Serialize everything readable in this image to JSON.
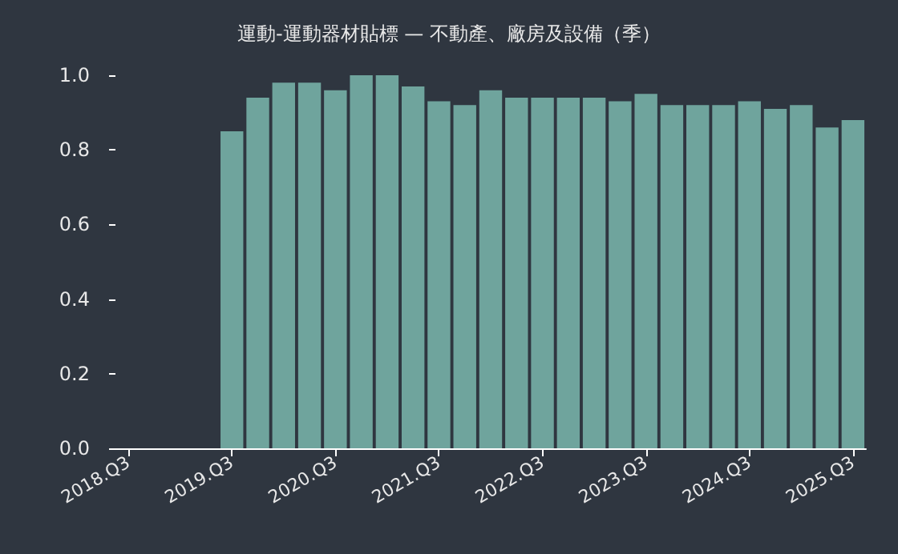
{
  "chart_data": {
    "type": "bar",
    "title": "運動-運動器材貼標 — 不動產、廠房及設備（季）",
    "categories": [
      "2018.Q3",
      null,
      null,
      null,
      "2019.Q3",
      null,
      null,
      null,
      "2020.Q3",
      null,
      null,
      null,
      "2021.Q3",
      null,
      null,
      null,
      "2022.Q3",
      null,
      null,
      null,
      "2023.Q3",
      null,
      null,
      null,
      "2024.Q3",
      null,
      null,
      null,
      "2025.Q3"
    ],
    "values": [
      null,
      null,
      null,
      null,
      0.85,
      0.94,
      0.98,
      0.98,
      0.96,
      1.0,
      1.0,
      0.97,
      0.93,
      0.92,
      0.96,
      0.94,
      0.94,
      0.94,
      0.94,
      0.93,
      0.95,
      0.92,
      0.92,
      0.92,
      0.93,
      0.91,
      0.92,
      0.86,
      0.88
    ],
    "color": "#6fa49d",
    "ylim": [
      0,
      1.0
    ],
    "yticks": [
      {
        "value": 0,
        "label": "0.0"
      },
      {
        "value": 0.2,
        "label": "0.2"
      },
      {
        "value": 0.4,
        "label": "0.4"
      },
      {
        "value": 0.6,
        "label": "0.6"
      },
      {
        "value": 0.8,
        "label": "0.8"
      },
      {
        "value": 1.0,
        "label": "1.0"
      }
    ],
    "grid": false
  }
}
